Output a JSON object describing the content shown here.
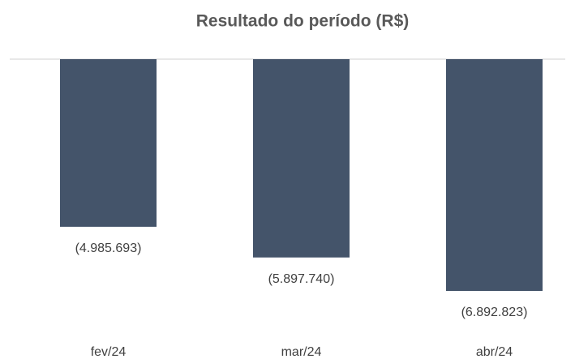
{
  "chart_data": {
    "type": "bar",
    "title": "Resultado do período (R$)",
    "categories": [
      "fev/24",
      "mar/24",
      "abr/24"
    ],
    "values": [
      -4985693,
      -5897740,
      -6892823
    ],
    "value_labels": [
      "(4.985.693)",
      "(5.897.740)",
      "(6.892.823)"
    ],
    "color": "#44546a"
  }
}
